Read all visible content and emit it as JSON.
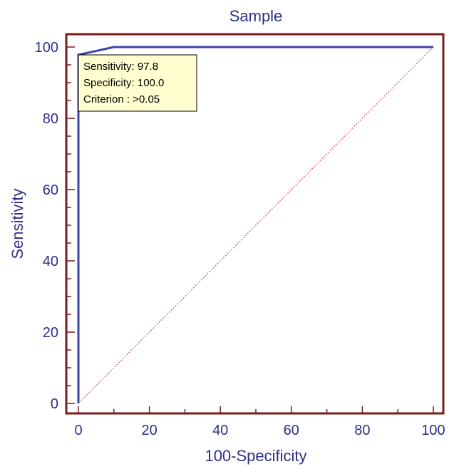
{
  "chart_data": {
    "type": "line",
    "title": "Sample",
    "xlabel": "100-Specificity",
    "ylabel": "Sensitivity",
    "xlim": [
      0,
      100
    ],
    "ylim": [
      0,
      100
    ],
    "xticks": [
      "0",
      "20",
      "40",
      "60",
      "80",
      "100"
    ],
    "yticks": [
      "0",
      "20",
      "40",
      "60",
      "80",
      "100"
    ],
    "grid": false,
    "legend": "none",
    "series": [
      {
        "x": [
          0,
          0,
          10,
          100
        ],
        "y": [
          0,
          97.8,
          100,
          100
        ],
        "color": "#4040a8"
      }
    ],
    "reference_line": {
      "x": [
        0,
        100
      ],
      "y": [
        0,
        100
      ],
      "color": "#c04040"
    },
    "annotation": {
      "lines": [
        "Sensitivity: 97.8",
        "Specificity: 100.0",
        "Criterion : >0.05"
      ],
      "anchor_x": 0,
      "anchor_y": 97.8,
      "background": "#ffffd0"
    },
    "frame_color": "#7a1a1a"
  }
}
